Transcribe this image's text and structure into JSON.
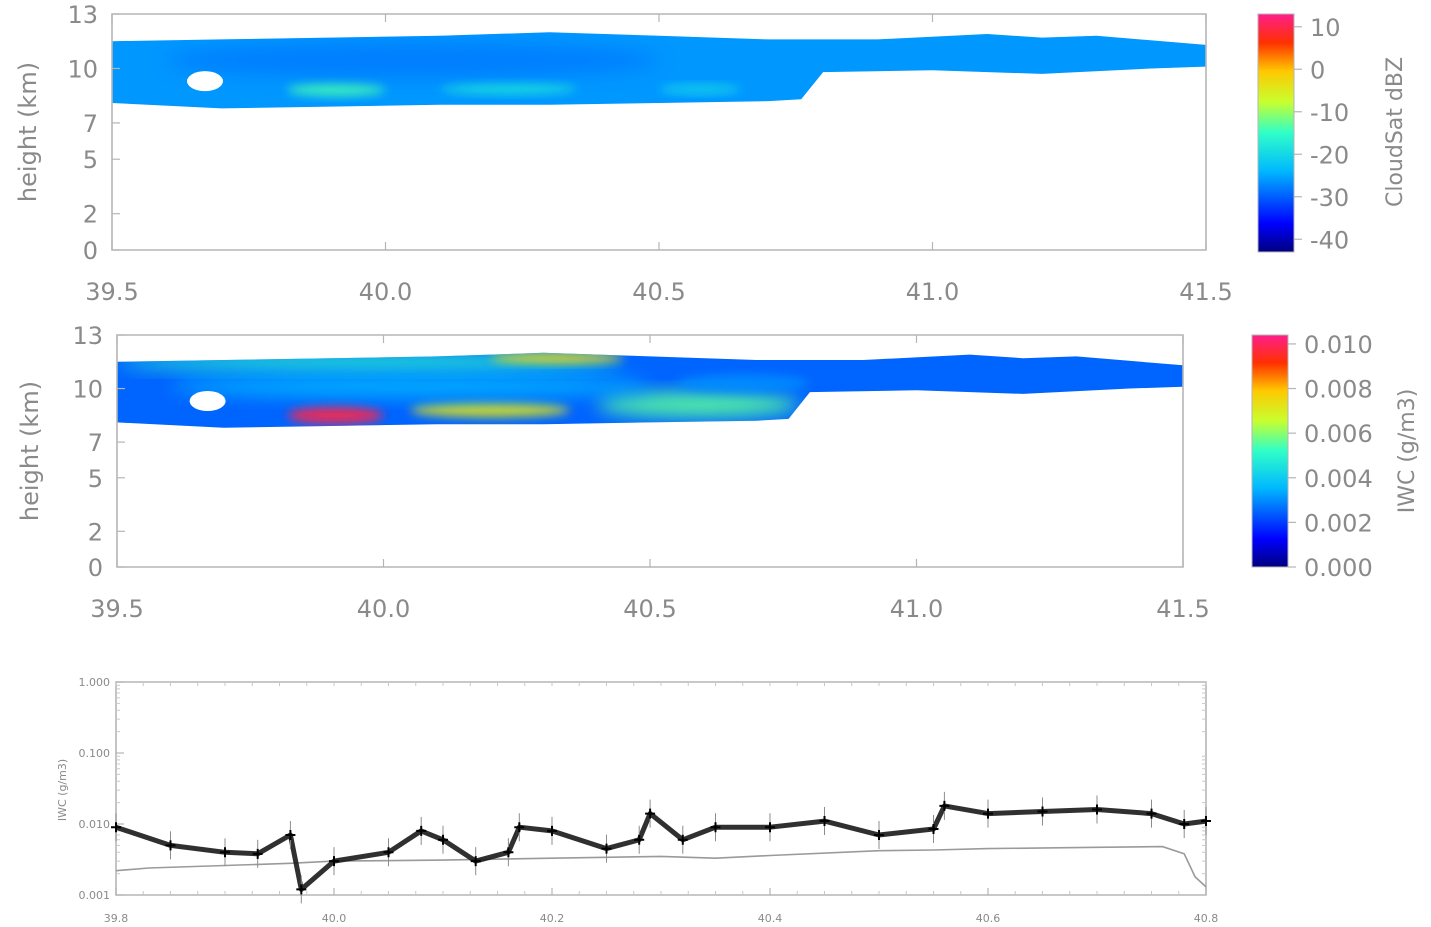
{
  "chart_data": [
    {
      "type": "heatmap",
      "id": "dbz",
      "ylabel": "height (km)",
      "x_ticks": [
        "39.5",
        "40.0",
        "40.5",
        "41.0",
        "41.5"
      ],
      "y_ticks": [
        "0",
        "2",
        "5",
        "7",
        "10",
        "13"
      ],
      "y_tick_values": [
        0,
        2,
        5,
        7,
        10,
        13
      ],
      "xlim": [
        39.5,
        41.5
      ],
      "ylim": [
        0,
        13
      ],
      "colorbar": {
        "label": "CloudSat dBZ",
        "ticks": [
          "10",
          "0",
          "-10",
          "-20",
          "-30",
          "-40"
        ],
        "tick_values": [
          10,
          0,
          -10,
          -20,
          -30,
          -40
        ],
        "range": [
          -43,
          13
        ]
      },
      "cloud_top_km": [
        [
          39.5,
          11.5
        ],
        [
          39.7,
          11.6
        ],
        [
          39.9,
          11.7
        ],
        [
          40.1,
          11.8
        ],
        [
          40.3,
          12.0
        ],
        [
          40.5,
          11.8
        ],
        [
          40.7,
          11.6
        ],
        [
          40.9,
          11.6
        ],
        [
          41.1,
          11.9
        ],
        [
          41.2,
          11.7
        ],
        [
          41.3,
          11.8
        ],
        [
          41.5,
          11.3
        ]
      ],
      "cloud_base_km": [
        [
          39.5,
          8.1
        ],
        [
          39.7,
          7.8
        ],
        [
          39.9,
          7.9
        ],
        [
          40.1,
          8.0
        ],
        [
          40.3,
          8.0
        ],
        [
          40.5,
          8.1
        ],
        [
          40.7,
          8.2
        ],
        [
          40.76,
          8.3
        ],
        [
          40.8,
          9.8
        ],
        [
          41.0,
          9.9
        ],
        [
          41.2,
          9.7
        ],
        [
          41.4,
          10.0
        ],
        [
          41.5,
          10.1
        ]
      ],
      "hole": {
        "x": 39.67,
        "y": 9.3
      },
      "features": [
        {
          "x": [
            39.82,
            40.0
          ],
          "y": [
            8.5,
            9.2
          ],
          "value": -14
        },
        {
          "x": [
            40.1,
            40.35
          ],
          "y": [
            8.6,
            9.2
          ],
          "value": -18
        },
        {
          "x": [
            40.5,
            40.65
          ],
          "y": [
            8.6,
            9.1
          ],
          "value": -20
        },
        {
          "x": [
            39.6,
            40.5
          ],
          "y": [
            9.5,
            11.4
          ],
          "value": -28
        }
      ]
    },
    {
      "type": "heatmap",
      "id": "iwc",
      "ylabel": "height (km)",
      "x_ticks": [
        "39.5",
        "40.0",
        "40.5",
        "41.0",
        "41.5"
      ],
      "y_ticks": [
        "0",
        "2",
        "5",
        "7",
        "10",
        "13"
      ],
      "y_tick_values": [
        0,
        2,
        5,
        7,
        10,
        13
      ],
      "xlim": [
        39.5,
        41.5
      ],
      "ylim": [
        0,
        13
      ],
      "colorbar": {
        "label": "IWC (g/m3)",
        "ticks": [
          "0.010",
          "0.008",
          "0.006",
          "0.004",
          "0.002",
          "0.000"
        ],
        "tick_values": [
          0.01,
          0.008,
          0.006,
          0.004,
          0.002,
          0.0
        ],
        "range": [
          0.0,
          0.0104
        ]
      },
      "cloud_top_km": [
        [
          39.5,
          11.5
        ],
        [
          39.7,
          11.6
        ],
        [
          39.9,
          11.7
        ],
        [
          40.1,
          11.8
        ],
        [
          40.3,
          12.0
        ],
        [
          40.5,
          11.8
        ],
        [
          40.7,
          11.6
        ],
        [
          40.9,
          11.6
        ],
        [
          41.1,
          11.9
        ],
        [
          41.2,
          11.7
        ],
        [
          41.3,
          11.8
        ],
        [
          41.5,
          11.3
        ]
      ],
      "cloud_base_km": [
        [
          39.5,
          8.1
        ],
        [
          39.7,
          7.8
        ],
        [
          39.9,
          7.9
        ],
        [
          40.1,
          8.0
        ],
        [
          40.3,
          8.0
        ],
        [
          40.5,
          8.1
        ],
        [
          40.7,
          8.2
        ],
        [
          40.76,
          8.3
        ],
        [
          40.8,
          9.8
        ],
        [
          41.0,
          9.9
        ],
        [
          41.2,
          9.7
        ],
        [
          41.4,
          10.0
        ],
        [
          41.5,
          10.1
        ]
      ],
      "hole": {
        "x": 39.67,
        "y": 9.3
      },
      "features": [
        {
          "x": [
            39.82,
            40.0
          ],
          "y": [
            8.0,
            9.0
          ],
          "value": 0.0098
        },
        {
          "x": [
            40.05,
            40.35
          ],
          "y": [
            8.4,
            9.2
          ],
          "value": 0.0072
        },
        {
          "x": [
            40.4,
            40.78
          ],
          "y": [
            8.4,
            9.8
          ],
          "value": 0.0056
        },
        {
          "x": [
            39.5,
            40.45
          ],
          "y": [
            11.0,
            11.9
          ],
          "value": 0.0052
        },
        {
          "x": [
            40.2,
            40.45
          ],
          "y": [
            11.4,
            12.0
          ],
          "value": 0.0075
        },
        {
          "x": [
            39.6,
            40.5
          ],
          "y": [
            9.5,
            10.8
          ],
          "value": 0.0035
        },
        {
          "x": [
            40.55,
            40.8
          ],
          "y": [
            9.8,
            10.8
          ],
          "value": 0.003
        }
      ]
    },
    {
      "type": "scatter",
      "id": "iwc_series",
      "ylabel": "IWC (g/m3)",
      "x_ticks": [
        "39.8",
        "40.0",
        "40.2",
        "40.4",
        "40.6",
        "40.8"
      ],
      "x_tick_values": [
        39.8,
        40.0,
        40.2,
        40.4,
        40.6,
        40.8
      ],
      "y_ticks": [
        "1.000",
        "0.100",
        "0.010",
        "0.001"
      ],
      "y_tick_values": [
        1.0,
        0.1,
        0.01,
        0.001
      ],
      "xlim": [
        39.8,
        40.8
      ],
      "ylim": [
        0.001,
        1.0
      ],
      "yscale": "log",
      "series": [
        {
          "style": "markers",
          "color": "#000000",
          "x": [
            39.8,
            39.85,
            39.9,
            39.93,
            39.96,
            39.97,
            40.0,
            40.05,
            40.08,
            40.1,
            40.13,
            40.16,
            40.17,
            40.2,
            40.25,
            40.28,
            40.29,
            40.32,
            40.35,
            40.4,
            40.45,
            40.5,
            40.55,
            40.56,
            40.6,
            40.65,
            40.7,
            40.75,
            40.78,
            40.8
          ],
          "y": [
            0.009,
            0.005,
            0.004,
            0.0038,
            0.007,
            0.0012,
            0.003,
            0.004,
            0.008,
            0.006,
            0.003,
            0.004,
            0.009,
            0.008,
            0.0045,
            0.006,
            0.014,
            0.006,
            0.009,
            0.009,
            0.011,
            0.007,
            0.0085,
            0.018,
            0.014,
            0.015,
            0.016,
            0.014,
            0.01,
            0.011
          ]
        },
        {
          "style": "line",
          "color": "#9a9a9a",
          "x": [
            39.8,
            39.83,
            39.9,
            39.96,
            40.0,
            40.1,
            40.2,
            40.3,
            40.35,
            40.4,
            40.5,
            40.55,
            40.6,
            40.7,
            40.76,
            40.78,
            40.79,
            40.8
          ],
          "y": [
            0.0022,
            0.0024,
            0.0026,
            0.0028,
            0.003,
            0.0031,
            0.0033,
            0.0035,
            0.0033,
            0.0036,
            0.0042,
            0.0043,
            0.0045,
            0.0047,
            0.0048,
            0.0038,
            0.0018,
            0.0013
          ]
        }
      ]
    }
  ]
}
